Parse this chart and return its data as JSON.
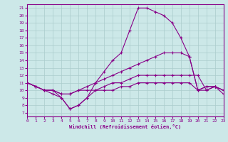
{
  "xlabel": "Windchill (Refroidissement éolien,°C)",
  "xlim": [
    0,
    23
  ],
  "ylim": [
    7,
    21
  ],
  "yticks": [
    7,
    8,
    9,
    10,
    11,
    12,
    13,
    14,
    15,
    16,
    17,
    18,
    19,
    20,
    21
  ],
  "xticks": [
    0,
    1,
    2,
    3,
    4,
    5,
    6,
    7,
    8,
    9,
    10,
    11,
    12,
    13,
    14,
    15,
    16,
    17,
    18,
    19,
    20,
    21,
    22,
    23
  ],
  "background_color": "#cce8e8",
  "line_color": "#880088",
  "grid_color": "#aacccc",
  "series": [
    {
      "x": [
        0,
        1,
        2,
        3,
        4,
        5,
        6,
        7,
        8,
        9,
        10,
        11,
        12,
        13,
        14,
        15,
        16,
        17,
        18,
        19,
        20,
        21,
        22,
        23
      ],
      "y": [
        11,
        10.5,
        10,
        10,
        9,
        7.5,
        8,
        9,
        11,
        12.5,
        14,
        15,
        18,
        21,
        21,
        20.5,
        20,
        19,
        17,
        14.5,
        10,
        10.5,
        10.5,
        10
      ]
    },
    {
      "x": [
        0,
        1,
        2,
        3,
        4,
        5,
        6,
        7,
        8,
        9,
        10,
        11,
        12,
        13,
        14,
        15,
        16,
        17,
        18,
        19,
        20,
        21,
        22,
        23
      ],
      "y": [
        11,
        10.5,
        10,
        10,
        9.5,
        9.5,
        10,
        10.5,
        11,
        11.5,
        12,
        12.5,
        13,
        13.5,
        14,
        14.5,
        15,
        15,
        15,
        14.5,
        10,
        10.5,
        10.5,
        10
      ]
    },
    {
      "x": [
        0,
        1,
        2,
        3,
        4,
        5,
        6,
        7,
        8,
        9,
        10,
        11,
        12,
        13,
        14,
        15,
        16,
        17,
        18,
        19,
        20,
        21,
        22,
        23
      ],
      "y": [
        11,
        10.5,
        10,
        10,
        9.5,
        9.5,
        10,
        10,
        10,
        10,
        10,
        10.5,
        10.5,
        11,
        11,
        11,
        11,
        11,
        11,
        11,
        10,
        10,
        10.5,
        9.5
      ]
    },
    {
      "x": [
        0,
        1,
        2,
        3,
        4,
        5,
        6,
        7,
        8,
        9,
        10,
        11,
        12,
        13,
        14,
        15,
        16,
        17,
        18,
        19,
        20,
        21,
        22,
        23
      ],
      "y": [
        11,
        10.5,
        10,
        9.5,
        9,
        7.5,
        8,
        9,
        10,
        10.5,
        11,
        11,
        11.5,
        12,
        12,
        12,
        12,
        12,
        12,
        12,
        12,
        10,
        10.5,
        10
      ]
    }
  ]
}
